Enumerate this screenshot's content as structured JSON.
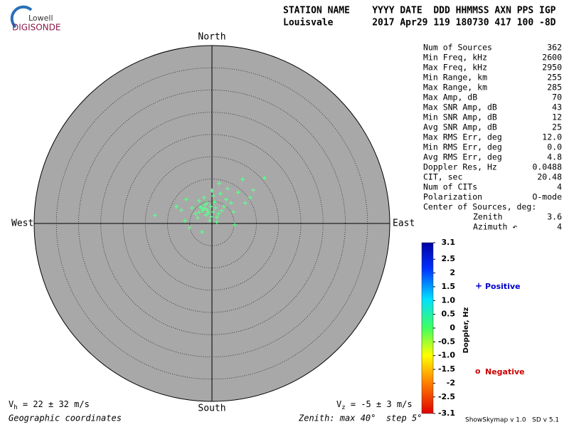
{
  "header": {
    "logo_top": "Lowell",
    "logo_bottom": "DIGISONDE",
    "labels_line": "STATION NAME    YYYY DATE  DDD HHMMSS AXN PPS IGP",
    "values_line": "Louisvale       2017 Apr29 119 180730 417 100 -8D"
  },
  "stats": {
    "rows": [
      [
        "Num of Sources",
        "362"
      ],
      [
        "Min Freq, kHz",
        "2600"
      ],
      [
        "Max Freq, kHz",
        "2950"
      ],
      [
        "Min Range, km",
        "255"
      ],
      [
        "Max Range, km",
        "285"
      ],
      [
        "Max Amp, dB",
        "70"
      ],
      [
        "Max SNR Amp, dB",
        "43"
      ],
      [
        "Min SNR Amp, dB",
        "12"
      ],
      [
        "Avg SNR Amp, dB",
        "25"
      ],
      [
        "Max RMS Err, deg",
        "12.0"
      ],
      [
        "Min RMS Err, deg",
        "0.0"
      ],
      [
        "Avg RMS Err, deg",
        "4.8"
      ],
      [
        "Doppler Res, Hz",
        "0.0488"
      ],
      [
        "CIT, sec",
        "20.48"
      ],
      [
        "Num of CITs",
        "4"
      ],
      [
        "Polarization",
        "O-mode"
      ]
    ],
    "center_title": "Center of Sources, deg:",
    "center_rows": [
      [
        "Zenith",
        "3.6"
      ],
      [
        "Azimuth ↶",
        "4"
      ]
    ]
  },
  "chart_data": {
    "type": "skymap",
    "directions": {
      "north": "North",
      "south": "South",
      "west": "West",
      "east": "East"
    },
    "xlim": [
      -40,
      40
    ],
    "ylim": [
      -40,
      40
    ],
    "rings": [
      5,
      10,
      15,
      20,
      25,
      30,
      35
    ],
    "series": [
      {
        "color": "#5cff8c",
        "x": [
          11.8,
          6.9,
          9.3,
          -12.8,
          -5.8,
          1.6,
          5.1,
          -2.2,
          -5.0,
          7.5,
          3.5,
          5.9,
          -8.0,
          -6.9,
          0.3,
          1.9,
          -2.9,
          -3.7,
          -0.5,
          1.1,
          2.7,
          4.3,
          -1.6,
          -1.0,
          -2.1,
          -0.3,
          0.3,
          -2.6,
          -1.3,
          -4.5,
          -3.2,
          0.6,
          2.2,
          3.2,
          0.0,
          -6.1,
          8.6,
          4.8,
          1.1,
          -1.8,
          -1.5,
          -0.8,
          -2.0,
          0.8,
          -1.1,
          -2.9,
          1.5,
          -0.2
        ],
        "y": [
          10.2,
          9.9,
          7.5,
          1.8,
          5.4,
          9.0,
          -0.3,
          -1.9,
          -1.0,
          4.6,
          7.8,
          7.0,
          3.8,
          3.0,
          6.2,
          6.7,
          5.1,
          2.2,
          0.6,
          1.4,
          3.8,
          4.6,
          4.2,
          3.0,
          2.9,
          3.8,
          2.6,
          3.7,
          1.9,
          3.5,
          1.3,
          4.8,
          2.9,
          5.4,
          7.4,
          0.6,
          5.8,
          2.6,
          0.3,
          5.8,
          3.3,
          2.4,
          3.4,
          3.5,
          4.6,
          2.5,
          2.2,
          1.5
        ]
      }
    ],
    "colorbar": {
      "label": "Doppler, Hz",
      "lim": [
        -3.1,
        3.1
      ],
      "ticks": [
        3.1,
        2.5,
        2,
        1.5,
        {
          "value": 1,
          "label": "1.0"
        },
        0.5,
        0,
        -0.5,
        {
          "value": -1,
          "label": "-1.0"
        },
        -1.5,
        -2,
        -2.5,
        -3.1
      ]
    },
    "legend": {
      "positive_symbol": "+",
      "positive": "Positive",
      "negative_symbol": "o",
      "negative": "Negative"
    }
  },
  "footer": {
    "vh_symbol": "V",
    "vh_sub": "h",
    "vh_text": " = 22 ± 32 m/s",
    "vz_symbol": "V",
    "vz_sub": "z",
    "vz_text": " = -5 ± 3 m/s",
    "coords": "Geographic coordinates",
    "zenith": "Zenith: max 40°  step 5°",
    "version": "ShowSkymap v 1.0   SD v 5.1"
  }
}
